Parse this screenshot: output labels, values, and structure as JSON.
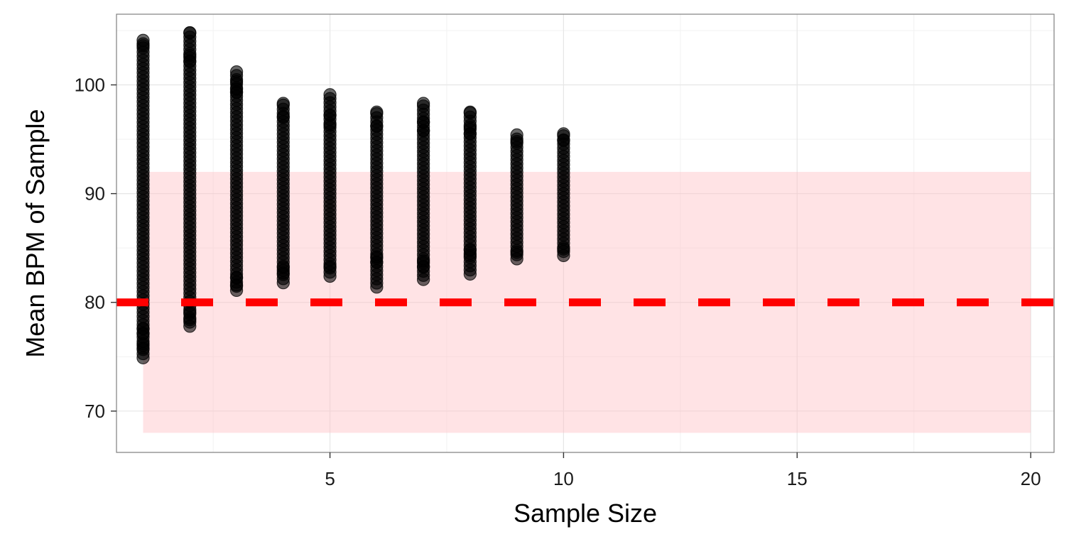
{
  "chart_data": {
    "type": "scatter",
    "title": "",
    "xlabel": "Sample Size",
    "ylabel": "Mean BPM of Sample",
    "xlim": [
      0.43,
      20.5
    ],
    "ylim": [
      66.2,
      106.5
    ],
    "x_ticks": [
      5,
      10,
      15,
      20
    ],
    "y_ticks": [
      70,
      80,
      90,
      100
    ],
    "x_tick_labels": [
      "5",
      "10",
      "15",
      "20"
    ],
    "y_tick_labels": [
      "70",
      "80",
      "90",
      "100"
    ],
    "grid": true,
    "legend": "none",
    "background_color": "#ffffff",
    "grid_color": "#e6e6e6",
    "point_color": "#000000",
    "point_opacity": 0.6,
    "shaded_band": {
      "x_range": [
        1,
        20
      ],
      "y_range": [
        68,
        92
      ],
      "color": "#ffc0c6",
      "opacity": 0.45
    },
    "reference_line": {
      "y": 80,
      "style": "dashed",
      "color": "#ff0000"
    },
    "series": [
      {
        "x": 1,
        "y_min": 74.9,
        "y_max": 104.1,
        "outliers": [
          74.9,
          75.8,
          76.2,
          77.1,
          77.6,
          104.1,
          103.6
        ]
      },
      {
        "x": 2,
        "y_min": 77.8,
        "y_max": 104.8,
        "outliers": [
          77.8,
          78.4,
          79.1,
          102.2,
          102.7,
          104.8
        ]
      },
      {
        "x": 3,
        "y_min": 81.1,
        "y_max": 101.2,
        "outliers": [
          81.1,
          81.6,
          82.3,
          99.3,
          99.6,
          100.3,
          101.2
        ]
      },
      {
        "x": 4,
        "y_min": 81.8,
        "y_max": 98.3,
        "outliers": [
          81.8,
          82.7,
          83.2,
          97.1,
          98.3
        ]
      },
      {
        "x": 5,
        "y_min": 82.4,
        "y_max": 99.1,
        "outliers": [
          82.4,
          83.3,
          96.3,
          97.2,
          99.1
        ]
      },
      {
        "x": 6,
        "y_min": 81.4,
        "y_max": 97.5,
        "outliers": [
          81.4,
          83.7,
          84.2,
          96.2,
          97.5
        ]
      },
      {
        "x": 7,
        "y_min": 82.1,
        "y_max": 98.3,
        "outliers": [
          82.1,
          83.3,
          83.8,
          95.8,
          96.6,
          98.3
        ]
      },
      {
        "x": 8,
        "y_min": 82.6,
        "y_max": 97.5,
        "outliers": [
          82.6,
          84.3,
          84.8,
          95.5,
          96.1,
          97.5
        ]
      },
      {
        "x": 9,
        "y_min": 84.0,
        "y_max": 95.4,
        "outliers": [
          84.0,
          84.6,
          94.8,
          95.4
        ]
      },
      {
        "x": 10,
        "y_min": 84.3,
        "y_max": 95.5,
        "outliers": [
          84.3,
          84.9,
          94.9,
          95.5
        ]
      }
    ]
  }
}
